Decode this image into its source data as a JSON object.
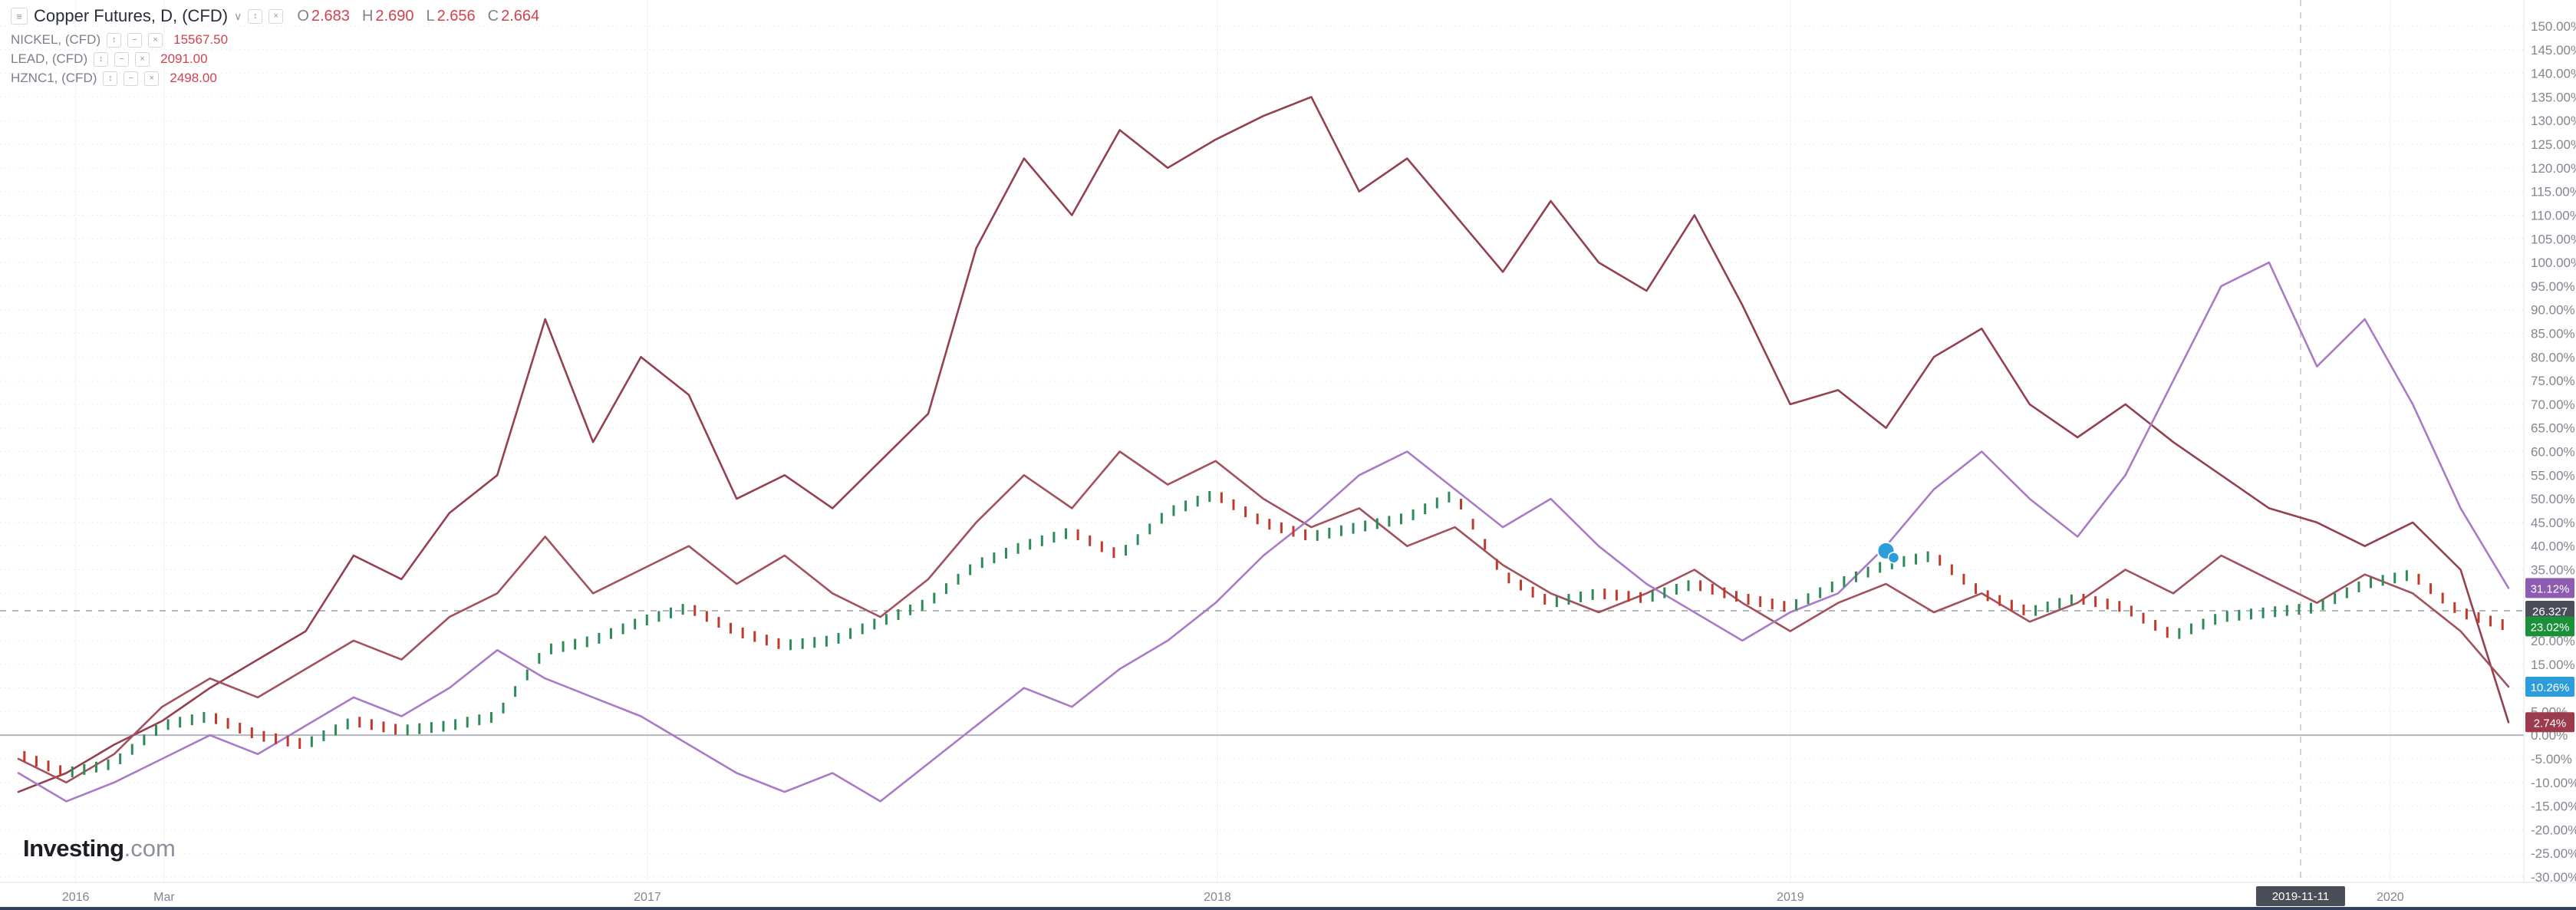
{
  "header": {
    "main_symbol": {
      "title": "Copper Futures, D, (CFD)",
      "ohlc": {
        "o_label": "O",
        "o_value": "2.683",
        "h_label": "H",
        "h_value": "2.690",
        "l_label": "L",
        "l_value": "2.656",
        "c_label": "C",
        "c_value": "2.664"
      }
    },
    "compare_symbols": [
      {
        "name": "NICKEL, (CFD)",
        "value": "15567.50"
      },
      {
        "name": "LEAD, (CFD)",
        "value": "2091.00"
      },
      {
        "name": "HZNC1, (CFD)",
        "value": "2498.00"
      }
    ]
  },
  "logo": {
    "brand": "Investing",
    "tld": ".com"
  },
  "colors": {
    "background": "#ffffff",
    "grid": "#cdd0d7",
    "axis_text": "#82868f",
    "zero_line": "#b2b6bf",
    "crosshair": "#9aa0a6",
    "legend_value_red": "#d0424e"
  },
  "chart_data": {
    "type": "line",
    "title": "",
    "xlabel": "",
    "ylabel": "",
    "y_axis": {
      "min": -30,
      "max": 150,
      "step": 5,
      "unit": "%",
      "label_format": "two_decimals_percent"
    },
    "x_ticks": [
      {
        "label": "2016",
        "f": 0.023
      },
      {
        "label": "Mar",
        "f": 0.0585
      },
      {
        "label": "2017",
        "f": 0.2526
      },
      {
        "label": "2018",
        "f": 0.4815
      },
      {
        "label": "2019",
        "f": 0.7116
      },
      {
        "label": "2019-11-11",
        "f": 0.9165,
        "style": "badge"
      },
      {
        "label": "2020",
        "f": 0.9525
      }
    ],
    "zero_line_value": 0,
    "crosshair": {
      "x_label": "2019-11-11",
      "x_f": 0.9165,
      "y_value": 26.327,
      "y_label": "26.327"
    },
    "marker": {
      "f": 0.75,
      "value": 39,
      "color": "#2d9cdb"
    },
    "series": [
      {
        "name": "NICKEL (CFD)",
        "render": "line",
        "color": "#94414f",
        "values": [
          -12,
          -8,
          -2,
          3,
          10,
          16,
          22,
          38,
          33,
          47,
          55,
          88,
          62,
          80,
          72,
          50,
          55,
          48,
          58,
          68,
          103,
          122,
          110,
          128,
          120,
          126,
          131,
          135,
          115,
          122,
          110,
          98,
          113,
          100,
          94,
          110,
          91,
          70,
          73,
          65,
          80,
          86,
          70,
          63,
          70,
          62,
          55,
          48,
          45,
          40,
          45,
          35,
          2.74
        ]
      },
      {
        "name": "LEAD (CFD)",
        "render": "line",
        "color": "#a2525c",
        "values": [
          -5,
          -10,
          -4,
          6,
          12,
          8,
          14,
          20,
          16,
          25,
          30,
          42,
          30,
          35,
          40,
          32,
          38,
          30,
          25,
          33,
          45,
          55,
          48,
          60,
          53,
          58,
          50,
          44,
          48,
          40,
          44,
          36,
          30,
          26,
          30,
          35,
          28,
          22,
          28,
          32,
          26,
          30,
          24,
          28,
          35,
          30,
          38,
          33,
          28,
          34,
          30,
          22,
          10.26
        ]
      },
      {
        "name": "HZNC1 (CFD)",
        "render": "line",
        "color": "#a97bc6",
        "values": [
          -8,
          -14,
          -10,
          -5,
          0,
          -4,
          2,
          8,
          4,
          10,
          18,
          12,
          8,
          4,
          -2,
          -8,
          -12,
          -8,
          -14,
          -6,
          2,
          10,
          6,
          14,
          20,
          28,
          38,
          46,
          55,
          60,
          52,
          44,
          50,
          40,
          32,
          26,
          20,
          26,
          30,
          40,
          52,
          60,
          50,
          42,
          55,
          75,
          95,
          100,
          78,
          88,
          70,
          48,
          31.12
        ]
      },
      {
        "name": "Copper Futures (CFD)",
        "render": "candles",
        "up_color": "#2e8b57",
        "down_color": "#c0392b",
        "values": [
          -4,
          -8,
          -6,
          2,
          4,
          0,
          -2,
          3,
          1,
          2,
          4,
          18,
          20,
          24,
          27,
          22,
          19,
          20,
          24,
          28,
          36,
          40,
          43,
          38,
          47,
          51,
          45,
          42,
          44,
          46,
          51,
          34,
          28,
          30,
          29,
          32,
          29,
          27,
          32,
          36,
          38,
          30,
          26,
          29,
          27,
          21,
          25,
          26,
          27,
          32,
          34,
          26,
          23.02
        ]
      }
    ],
    "last_value_badges": [
      {
        "text": "31.12%",
        "value": 31.12,
        "color": "#8d5bb0"
      },
      {
        "text": "26.327",
        "value": 26.327,
        "color": "#4a4e59"
      },
      {
        "text": "23.02%",
        "value": 23.02,
        "color": "#1b8f3a"
      },
      {
        "text": "10.26%",
        "value": 10.26,
        "color": "#2d9cdb"
      },
      {
        "text": "2.74%",
        "value": 2.74,
        "color": "#9c3a4e"
      }
    ]
  }
}
